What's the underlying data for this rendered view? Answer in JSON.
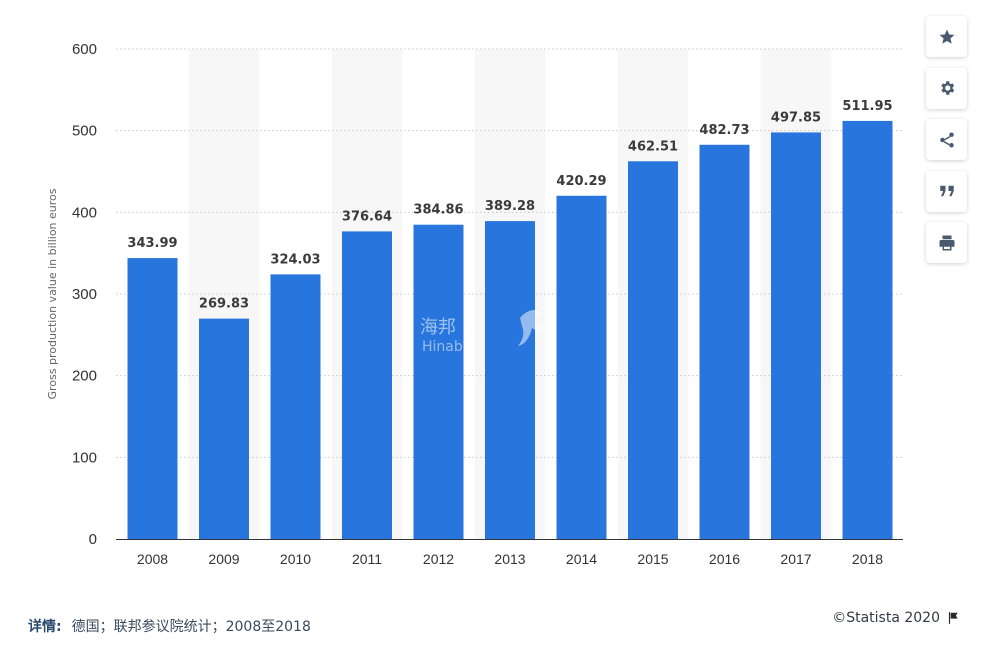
{
  "chart_data": {
    "type": "bar",
    "categories": [
      "2008",
      "2009",
      "2010",
      "2011",
      "2012",
      "2013",
      "2014",
      "2015",
      "2016",
      "2017",
      "2018"
    ],
    "values": [
      343.99,
      269.83,
      324.03,
      376.64,
      384.86,
      389.28,
      420.29,
      462.51,
      482.73,
      497.85,
      511.95
    ],
    "value_labels": [
      "343.99",
      "269.83",
      "324.03",
      "376.64",
      "384.86",
      "389.28",
      "420.29",
      "462.51",
      "482.73",
      "497.85",
      "511.95"
    ],
    "ylabel": "Gross production value in billion euros",
    "ylim": [
      0,
      600
    ],
    "yticks": [
      "0",
      "100",
      "200",
      "300",
      "400",
      "500",
      "600"
    ],
    "grid": true,
    "alternating_column_shading": true,
    "bar_color": "#2876dd"
  },
  "watermark": {
    "text": "海邦",
    "subtext": "Hinaba"
  },
  "toolbar": {
    "buttons": [
      {
        "icon": "star-icon",
        "name": "favorite-button"
      },
      {
        "icon": "gear-icon",
        "name": "settings-button"
      },
      {
        "icon": "share-icon",
        "name": "share-button"
      },
      {
        "icon": "quote-icon",
        "name": "cite-button"
      },
      {
        "icon": "print-icon",
        "name": "print-button"
      }
    ]
  },
  "footer": {
    "details_label": "详情:",
    "source_text": "德国；联邦参议院统计；2008至2018",
    "copyright": "©Statista 2020"
  }
}
